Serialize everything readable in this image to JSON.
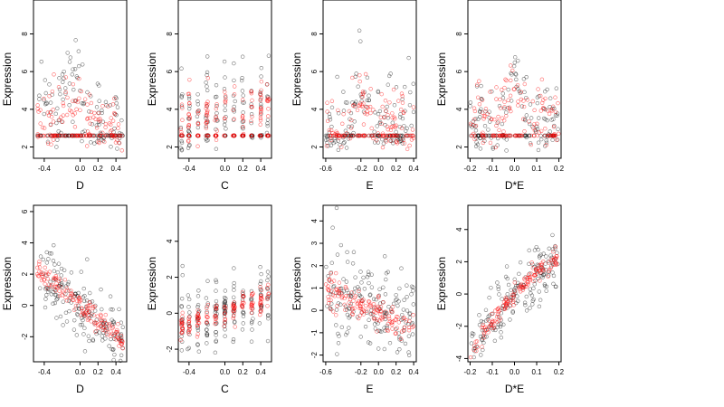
{
  "chart_data": [
    {
      "type": "scatter",
      "xlabel": "D",
      "ylabel": "Expression",
      "xticks": [
        "-0.4",
        "0.0",
        "0.2",
        "0.4"
      ],
      "xtick_values": [
        -0.4,
        0.0,
        0.2,
        0.4
      ],
      "yticks": [
        "2",
        "4",
        "6",
        "8"
      ],
      "ytick_values": [
        2,
        4,
        6,
        8
      ],
      "xlim": [
        -0.52,
        0.52
      ],
      "ylim": [
        1.4,
        9.8
      ],
      "series": [
        {
          "color": "#000000",
          "pattern": "floor",
          "floor": 2.6,
          "xr": [
            -0.48,
            0.48
          ],
          "ctr": {
            "xa": -0.48,
            "ya": 4.0,
            "xb": 0.48,
            "yb": 3.0
          },
          "spread": 1.1,
          "hump": {
            "x": -0.12,
            "h": 2.0,
            "w": 0.12
          },
          "n": 180
        },
        {
          "color": "#ff0000",
          "pattern": "floor",
          "floor": 2.6,
          "xr": [
            -0.48,
            0.48
          ],
          "ctr": {
            "xa": -0.48,
            "ya": 3.6,
            "xb": 0.48,
            "yb": 3.0
          },
          "spread": 0.8,
          "hump": {
            "x": -0.12,
            "h": 1.5,
            "w": 0.12
          },
          "n": 160
        }
      ]
    },
    {
      "type": "scatter",
      "xlabel": "C",
      "ylabel": "Expression",
      "xticks": [
        "-0.4",
        "0.0",
        "0.2",
        "0.4"
      ],
      "xtick_values": [
        -0.4,
        0.0,
        0.2,
        0.4
      ],
      "yticks": [
        "2",
        "4",
        "6",
        "8"
      ],
      "ytick_values": [
        2,
        4,
        6,
        8
      ],
      "xlim": [
        -0.52,
        0.52
      ],
      "ylim": [
        1.4,
        9.8
      ],
      "series": [
        {
          "color": "#000000",
          "pattern": "floor-cols",
          "floor": 2.6,
          "cols": [
            -0.48,
            -0.4,
            -0.3,
            -0.2,
            -0.1,
            0.0,
            0.1,
            0.2,
            0.3,
            0.4,
            0.48
          ],
          "ctr": {
            "xa": -0.48,
            "ya": 3.5,
            "xb": 0.48,
            "yb": 4.5
          },
          "spread": 1.2,
          "n": 180
        },
        {
          "color": "#ff0000",
          "pattern": "floor-cols",
          "floor": 2.6,
          "cols": [
            -0.48,
            -0.4,
            -0.3,
            -0.2,
            -0.1,
            0.0,
            0.1,
            0.2,
            0.3,
            0.4,
            0.48
          ],
          "ctr": {
            "xa": -0.48,
            "ya": 3.3,
            "xb": 0.48,
            "yb": 4.5
          },
          "spread": 0.7,
          "n": 160
        }
      ]
    },
    {
      "type": "scatter",
      "xlabel": "E",
      "ylabel": "Expression",
      "xticks": [
        "-0.6",
        "-0.2",
        "0.0",
        "0.2",
        "0.4"
      ],
      "xtick_values": [
        -0.6,
        -0.2,
        0.0,
        0.2,
        0.4
      ],
      "yticks": [
        "2",
        "4",
        "6",
        "8"
      ],
      "ytick_values": [
        2,
        4,
        6,
        8
      ],
      "xlim": [
        -0.63,
        0.43
      ],
      "ylim": [
        1.4,
        9.8
      ],
      "series": [
        {
          "color": "#000000",
          "pattern": "floor",
          "floor": 2.6,
          "xr": [
            -0.6,
            0.4
          ],
          "ctr": {
            "xa": -0.6,
            "ya": 3.0,
            "xb": 0.4,
            "yb": 3.6
          },
          "spread": 1.2,
          "hump": {
            "x": -0.2,
            "h": 2.0,
            "w": 0.1
          },
          "n": 180
        },
        {
          "color": "#ff0000",
          "pattern": "floor",
          "floor": 2.6,
          "xr": [
            -0.6,
            0.4
          ],
          "ctr": {
            "xa": -0.6,
            "ya": 3.2,
            "xb": 0.4,
            "yb": 3.2
          },
          "spread": 0.8,
          "hump": {
            "x": -0.2,
            "h": 1.6,
            "w": 0.1
          },
          "n": 160
        }
      ]
    },
    {
      "type": "scatter",
      "xlabel": "D*E",
      "ylabel": "Expression",
      "xticks": [
        "-0.2",
        "-0.1",
        "0.0",
        "0.1",
        "0.2"
      ],
      "xtick_values": [
        -0.2,
        -0.1,
        0.0,
        0.1,
        0.2
      ],
      "yticks": [
        "2",
        "4",
        "6",
        "8"
      ],
      "ytick_values": [
        2,
        4,
        6,
        8
      ],
      "xlim": [
        -0.21,
        0.21
      ],
      "ylim": [
        1.4,
        9.8
      ],
      "series": [
        {
          "color": "#000000",
          "pattern": "floor",
          "floor": 2.6,
          "xr": [
            -0.2,
            0.2
          ],
          "ctr": {
            "xa": -0.2,
            "ya": 3.2,
            "xb": 0.2,
            "yb": 3.2
          },
          "spread": 1.0,
          "hump": {
            "x": 0.0,
            "h": 3.0,
            "w": 0.03
          },
          "n": 180
        },
        {
          "color": "#ff0000",
          "pattern": "floor",
          "floor": 2.6,
          "xr": [
            -0.2,
            0.2
          ],
          "ctr": {
            "xa": -0.2,
            "ya": 3.6,
            "xb": 0.2,
            "yb": 3.6
          },
          "spread": 0.8,
          "hump": {
            "x": 0.0,
            "h": 1.8,
            "w": 0.04
          },
          "n": 160
        }
      ]
    },
    {
      "type": "scatter",
      "xlabel": "D",
      "ylabel": "Expression",
      "xticks": [
        "-0.4",
        "0.0",
        "0.2",
        "0.4"
      ],
      "xtick_values": [
        -0.4,
        0.0,
        0.2,
        0.4
      ],
      "yticks": [
        "-2",
        "0",
        "2",
        "4",
        "6"
      ],
      "ytick_values": [
        -2,
        0,
        2,
        4,
        6
      ],
      "xlim": [
        -0.52,
        0.52
      ],
      "ylim": [
        -3.6,
        6.4
      ],
      "series": [
        {
          "color": "#000000",
          "pattern": "line",
          "xr": [
            -0.48,
            0.48
          ],
          "ctr": {
            "xa": -0.48,
            "ya": 2.4,
            "xb": 0.48,
            "yb": -2.4
          },
          "spread": 1.0,
          "n": 170
        },
        {
          "color": "#ff0000",
          "pattern": "line",
          "xr": [
            -0.48,
            0.48
          ],
          "ctr": {
            "xa": -0.48,
            "ya": 2.3,
            "xb": 0.48,
            "yb": -2.3
          },
          "spread": 0.35,
          "n": 140
        }
      ]
    },
    {
      "type": "scatter",
      "xlabel": "C",
      "ylabel": "Expression",
      "xticks": [
        "-0.4",
        "0.0",
        "0.2",
        "0.4"
      ],
      "xtick_values": [
        -0.4,
        0.0,
        0.2,
        0.4
      ],
      "yticks": [
        "-2",
        "0",
        "2",
        "4"
      ],
      "ytick_values": [
        -2,
        0,
        2,
        4
      ],
      "xlim": [
        -0.52,
        0.52
      ],
      "ylim": [
        -2.7,
        6.0
      ],
      "series": [
        {
          "color": "#000000",
          "pattern": "cols",
          "cols": [
            -0.48,
            -0.4,
            -0.3,
            -0.2,
            -0.1,
            0.0,
            0.1,
            0.2,
            0.3,
            0.4,
            0.48
          ],
          "ctr": {
            "xa": -0.48,
            "ya": -0.7,
            "xb": 0.48,
            "yb": 0.8
          },
          "spread": 1.0,
          "n": 170
        },
        {
          "color": "#ff0000",
          "pattern": "cols",
          "cols": [
            -0.48,
            -0.4,
            -0.3,
            -0.2,
            -0.1,
            0.0,
            0.1,
            0.2,
            0.3,
            0.4,
            0.48
          ],
          "ctr": {
            "xa": -0.48,
            "ya": -0.8,
            "xb": 0.48,
            "yb": 0.9
          },
          "spread": 0.35,
          "n": 140
        }
      ]
    },
    {
      "type": "scatter",
      "xlabel": "E",
      "ylabel": "Expression",
      "xticks": [
        "-0.6",
        "-0.2",
        "0.0",
        "0.2",
        "0.4"
      ],
      "xtick_values": [
        -0.6,
        -0.2,
        0.0,
        0.2,
        0.4
      ],
      "yticks": [
        "-2",
        "-1",
        "0",
        "1",
        "2",
        "3",
        "4"
      ],
      "ytick_values": [
        -2,
        -1,
        0,
        1,
        2,
        3,
        4
      ],
      "xlim": [
        -0.63,
        0.43
      ],
      "ylim": [
        -2.3,
        4.7
      ],
      "series": [
        {
          "color": "#000000",
          "pattern": "line",
          "xr": [
            -0.6,
            0.4
          ],
          "ctr": {
            "xa": -0.6,
            "ya": 1.2,
            "xb": 0.4,
            "yb": -0.6
          },
          "spread": 1.0,
          "n": 170
        },
        {
          "color": "#ff0000",
          "pattern": "line",
          "xr": [
            -0.6,
            0.4
          ],
          "ctr": {
            "xa": -0.6,
            "ya": 0.9,
            "xb": 0.4,
            "yb": -0.8
          },
          "spread": 0.35,
          "n": 140
        }
      ]
    },
    {
      "type": "scatter",
      "xlabel": "D*E",
      "ylabel": "Expression",
      "xticks": [
        "-0.2",
        "-0.1",
        "0.0",
        "0.1",
        "0.2"
      ],
      "xtick_values": [
        -0.2,
        -0.1,
        0.0,
        0.1,
        0.2
      ],
      "yticks": [
        "-4",
        "-2",
        "0",
        "2",
        "4"
      ],
      "ytick_values": [
        -4,
        -2,
        0,
        2,
        4
      ],
      "xlim": [
        -0.21,
        0.21
      ],
      "ylim": [
        -4.2,
        5.5
      ],
      "series": [
        {
          "color": "#000000",
          "pattern": "curve",
          "xr": [
            -0.2,
            0.2
          ],
          "curve": {
            "lin": 15,
            "quad": -20
          },
          "spread": 0.9,
          "n": 170
        },
        {
          "color": "#ff0000",
          "pattern": "curve",
          "xr": [
            -0.2,
            0.2
          ],
          "curve": {
            "lin": 15,
            "quad": -20
          },
          "spread": 0.3,
          "n": 140
        }
      ]
    }
  ]
}
